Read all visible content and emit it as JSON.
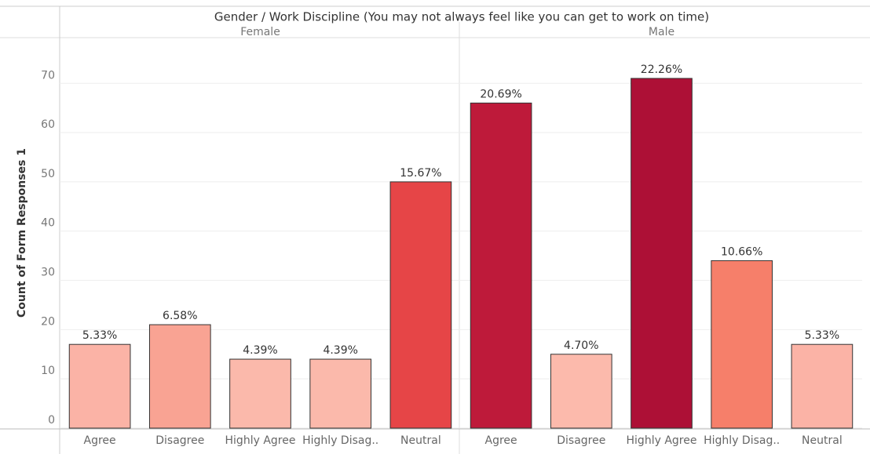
{
  "chart_data": {
    "type": "bar",
    "title": "Gender / Work Discipline (You may not always feel like you can get to work on time)",
    "y_label": "Count of Form Responses 1",
    "ylim": [
      0,
      78
    ],
    "yticks": [
      0,
      10,
      20,
      30,
      40,
      50,
      60,
      70
    ],
    "grid": true,
    "panels": [
      {
        "name": "Female",
        "categories": [
          "Agree",
          "Disagree",
          "Highly Agree",
          "Highly Disag..",
          "Neutral"
        ],
        "values": [
          17,
          21,
          14,
          14,
          50
        ],
        "value_labels": [
          "5.33%",
          "6.58%",
          "4.39%",
          "4.39%",
          "15.67%"
        ],
        "colors": [
          "#fbb3a6",
          "#f9a393",
          "#fbb9ab",
          "#fbb9ab",
          "#e64547"
        ]
      },
      {
        "name": "Male",
        "categories": [
          "Agree",
          "Disagree",
          "Highly Agree",
          "Highly Disag..",
          "Neutral"
        ],
        "values": [
          66,
          15,
          71,
          34,
          17
        ],
        "value_labels": [
          "20.69%",
          "4.70%",
          "22.26%",
          "10.66%",
          "5.33%"
        ],
        "colors": [
          "#be1a3a",
          "#fcbaac",
          "#ad1036",
          "#f67f6a",
          "#fbb3a6"
        ]
      }
    ]
  }
}
